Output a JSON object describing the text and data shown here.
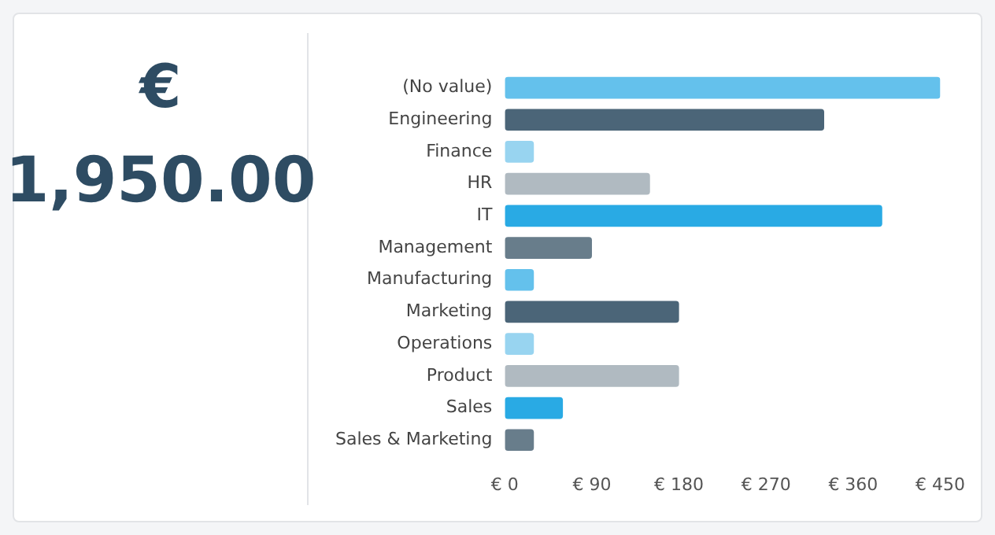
{
  "chart_data": [
    {
      "type": "other",
      "annotations": [
        "€",
        "1,950.00"
      ]
    },
    {
      "type": "bar",
      "orientation": "horizontal",
      "categories": [
        "(No value)",
        "Engineering",
        "Finance",
        "HR",
        "IT",
        "Management",
        "Manufacturing",
        "Marketing",
        "Operations",
        "Product",
        "Sales",
        "Sales & Marketing"
      ],
      "values": [
        450,
        330,
        30,
        150,
        390,
        90,
        30,
        180,
        30,
        180,
        60,
        30
      ],
      "colors": [
        "#64c1ec",
        "#4b6578",
        "#98d4f0",
        "#b0bac1",
        "#29aae4",
        "#687d8b",
        "#64c1ec",
        "#4b6578",
        "#98d4f0",
        "#b0bac1",
        "#29aae4",
        "#687d8b"
      ],
      "xlim": [
        0,
        450
      ],
      "xticks": [
        {
          "value": 0,
          "label": "€ 0"
        },
        {
          "value": 90,
          "label": "€ 90"
        },
        {
          "value": 180,
          "label": "€ 180"
        },
        {
          "value": 270,
          "label": "€ 270"
        },
        {
          "value": 360,
          "label": "€ 360"
        },
        {
          "value": 450,
          "label": "€ 450"
        }
      ],
      "grid": false,
      "legend": false
    }
  ]
}
